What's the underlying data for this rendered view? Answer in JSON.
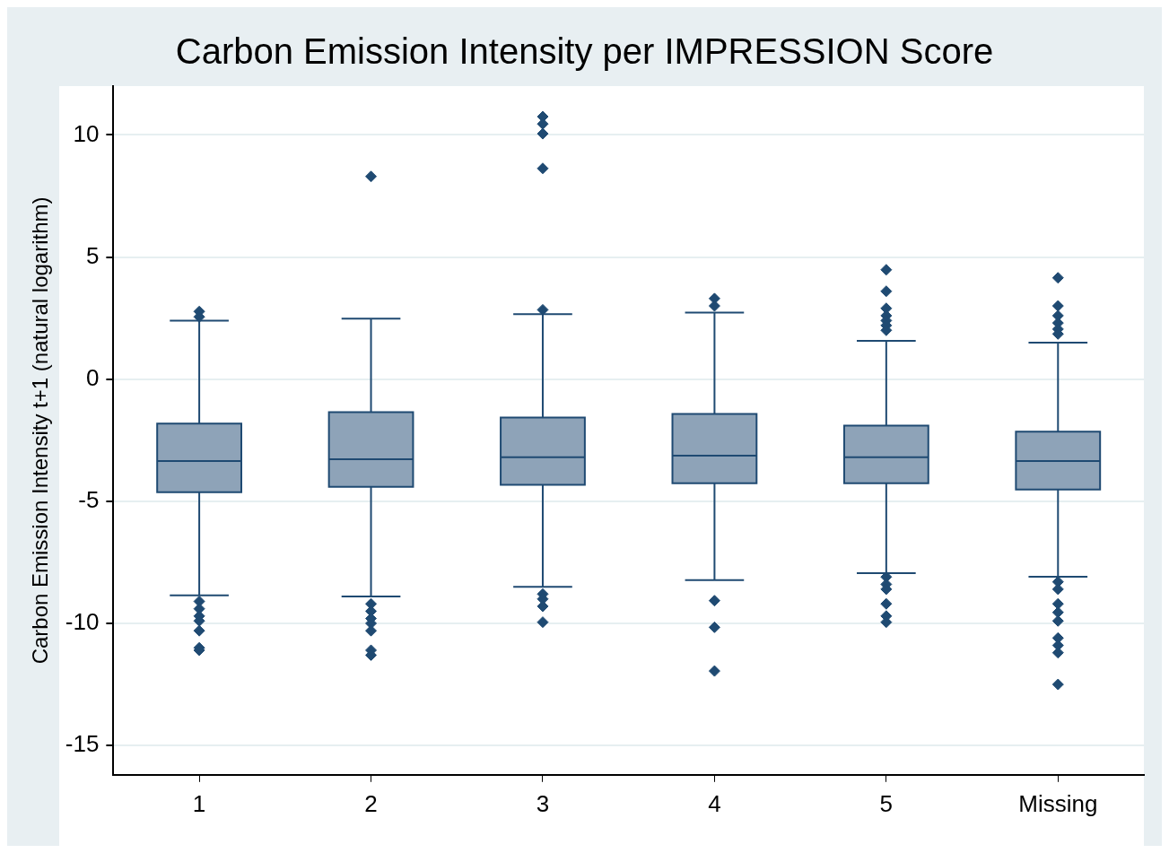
{
  "chart_data": {
    "type": "box",
    "title": "Carbon Emission Intensity per IMPRESSION Score",
    "ylabel": "Carbon Emission Intensity t+1 (natural logarithm)",
    "categories": [
      "1",
      "2",
      "3",
      "4",
      "5",
      "Missing"
    ],
    "color": "#8ea3b8",
    "ylim": [
      -16.2,
      12
    ],
    "yticks": [
      -15,
      -10,
      -5,
      0,
      5,
      10
    ],
    "grid": "y",
    "boxes": [
      {
        "low": -8.85,
        "q1": -4.63,
        "median": -3.35,
        "q3": -1.82,
        "high": 2.4,
        "outliers": [
          2.77,
          2.55,
          -9.1,
          -9.4,
          -9.7,
          -9.9,
          -10.3,
          -11.0,
          -11.1
        ]
      },
      {
        "low": -8.9,
        "q1": -4.41,
        "median": -3.28,
        "q3": -1.35,
        "high": 2.48,
        "outliers": [
          8.3,
          -9.2,
          -9.5,
          -9.8,
          -10.0,
          -10.3,
          -11.1,
          -11.3
        ]
      },
      {
        "low": -8.5,
        "q1": -4.33,
        "median": -3.2,
        "q3": -1.57,
        "high": 2.66,
        "outliers": [
          10.75,
          10.45,
          10.05,
          8.63,
          2.84,
          -8.8,
          -9.0,
          -9.3,
          -9.95
        ]
      },
      {
        "low": -8.23,
        "q1": -4.26,
        "median": -3.13,
        "q3": -1.42,
        "high": 2.73,
        "outliers": [
          3.3,
          3.0,
          -9.07,
          -10.16,
          -11.95
        ]
      },
      {
        "low": -7.94,
        "q1": -4.26,
        "median": -3.2,
        "q3": -1.9,
        "high": 1.57,
        "outliers": [
          4.48,
          3.6,
          2.9,
          2.6,
          2.4,
          2.2,
          2.0,
          -8.1,
          -8.4,
          -8.6,
          -9.2,
          -9.7,
          -9.95
        ]
      },
      {
        "low": -8.09,
        "q1": -4.52,
        "median": -3.35,
        "q3": -2.15,
        "high": 1.5,
        "outliers": [
          4.15,
          3.0,
          2.6,
          2.3,
          2.05,
          1.85,
          -8.3,
          -8.6,
          -9.2,
          -9.55,
          -9.9,
          -10.6,
          -10.9,
          -11.2,
          -12.5
        ]
      }
    ]
  }
}
